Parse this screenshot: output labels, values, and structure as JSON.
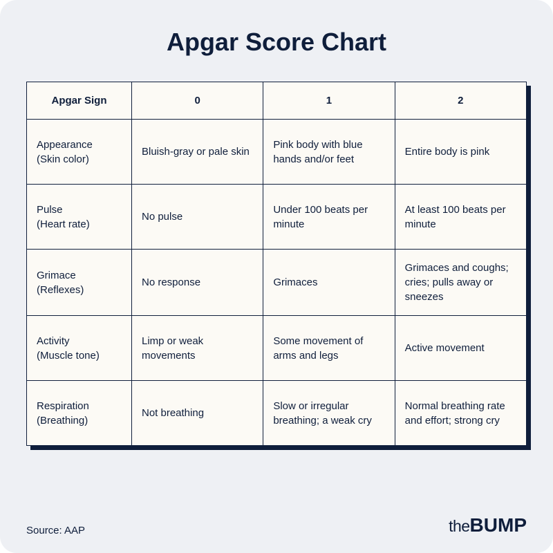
{
  "title": "Apgar Score Chart",
  "source": "Source: AAP",
  "brand": {
    "prefix": "the",
    "name": "BUMP"
  },
  "table": {
    "type": "table",
    "background_color": "#fcfaf5",
    "border_color": "#0f1e3b",
    "text_color": "#0f1e3b",
    "shadow_color": "#0f1e3b",
    "container_bg": "#eef0f4",
    "header_fontsize": 15,
    "cell_fontsize": 15,
    "columns": [
      "Apgar Sign",
      "0",
      "1",
      "2"
    ],
    "column_widths_pct": [
      21,
      26.3,
      26.3,
      26.3
    ],
    "rows": [
      {
        "sign": "Appearance",
        "sublabel": "(Skin color)",
        "scores": [
          "Bluish-gray or pale skin",
          "Pink body with blue hands and/or feet",
          "Entire body is pink"
        ]
      },
      {
        "sign": "Pulse",
        "sublabel": "(Heart rate)",
        "scores": [
          "No pulse",
          "Under 100 beats per minute",
          "At least 100 beats per minute"
        ]
      },
      {
        "sign": "Grimace",
        "sublabel": "(Reflexes)",
        "scores": [
          "No response",
          "Grimaces",
          "Grimaces and coughs; cries; pulls away or sneezes"
        ]
      },
      {
        "sign": "Activity",
        "sublabel": "(Muscle tone)",
        "scores": [
          "Limp or weak movements",
          "Some movement of arms and legs",
          "Active movement"
        ]
      },
      {
        "sign": "Respiration",
        "sublabel": "(Breathing)",
        "scores": [
          "Not breathing",
          "Slow or irregular breathing; a weak cry",
          "Normal breathing rate and effort; strong cry"
        ]
      }
    ]
  }
}
